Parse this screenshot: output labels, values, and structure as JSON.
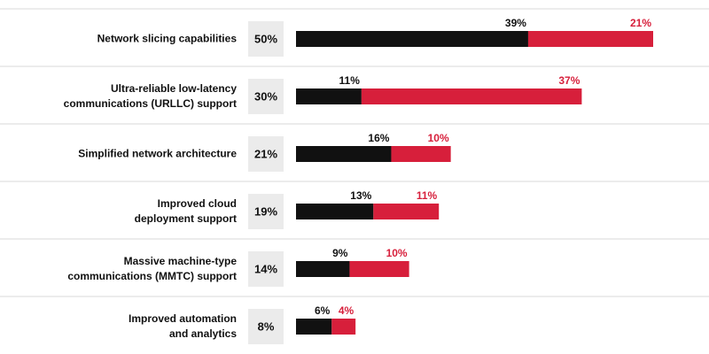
{
  "chart_data": {
    "type": "stacked-bar",
    "categories": [
      "Network slicing capabilities",
      "Ultra-reliable low-latency\ncommunications (URLLC) support",
      "Simplified network architecture",
      "Improved cloud\ndeployment support",
      "Massive machine-type\ncommunications (MMTC) support",
      "Improved automation\nand analytics"
    ],
    "highlight_values": [
      50,
      30,
      21,
      19,
      14,
      8
    ],
    "highlight_labels": [
      "50%",
      "30%",
      "21%",
      "19%",
      "14%",
      "8%"
    ],
    "series": [
      {
        "color": "#111111",
        "values": [
          39,
          11,
          16,
          13,
          9,
          6
        ],
        "value_labels": [
          "39%",
          "11%",
          "16%",
          "13%",
          "9%",
          "6%"
        ]
      },
      {
        "color": "#d71f3b",
        "values": [
          21,
          37,
          10,
          11,
          10,
          4
        ],
        "value_labels": [
          "21%",
          "37%",
          "10%",
          "11%",
          "10%",
          "4%"
        ]
      }
    ],
    "xlim": [
      0,
      60
    ]
  }
}
